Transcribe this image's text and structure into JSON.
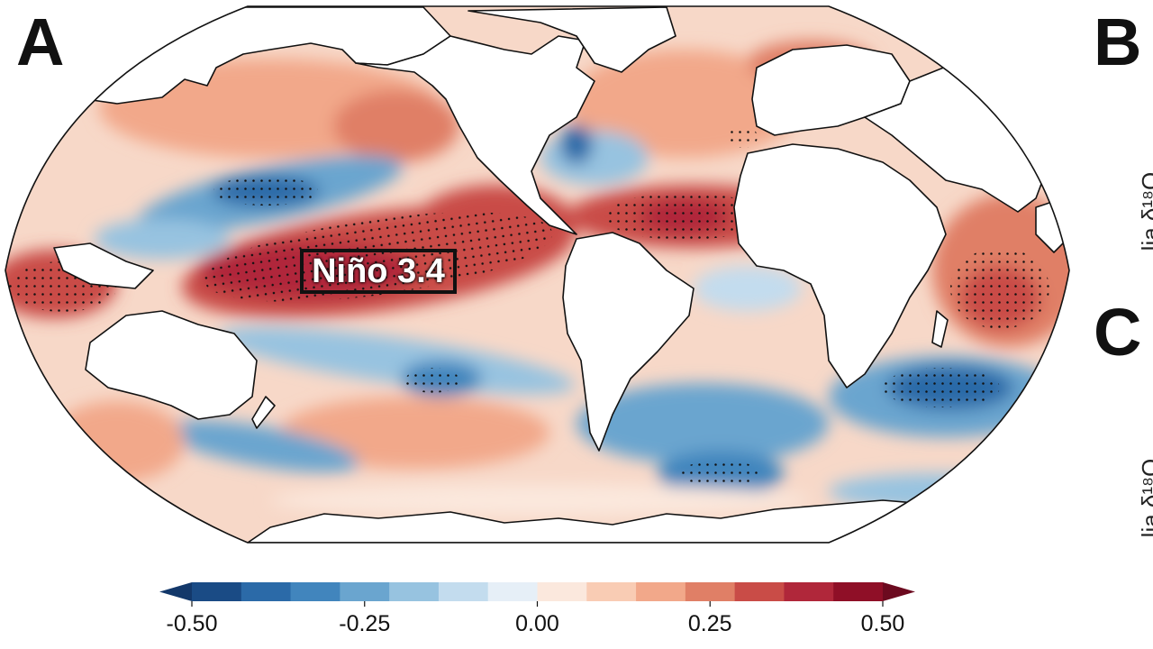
{
  "panels": {
    "a": "A",
    "b": "B",
    "c": "C"
  },
  "cut_axis_text": "...lia δ¹⁸O",
  "map": {
    "projection": "Robinson-like",
    "region_label": "Niño 3.4",
    "stippling": "significant"
  },
  "colorbar": {
    "ticks": [
      "-0.50",
      "-0.25",
      "0.00",
      "0.25",
      "0.50"
    ],
    "levels": [
      -0.5,
      -0.4375,
      -0.375,
      -0.3125,
      -0.25,
      -0.1875,
      -0.125,
      -0.0625,
      0,
      0.0625,
      0.125,
      0.1875,
      0.25,
      0.3125,
      0.375,
      0.4375,
      0.5
    ],
    "colors": [
      "#1a4b85",
      "#2b6aa8",
      "#4185bd",
      "#6aa5cf",
      "#97c3e0",
      "#c3dcee",
      "#e6eff7",
      "#fbe8dd",
      "#f9ccb4",
      "#f2a88a",
      "#e07f66",
      "#c94c47",
      "#b0273a",
      "#8f0f27"
    ],
    "extend": "both",
    "under_color": "#13386a",
    "over_color": "#6c0a1f"
  }
}
